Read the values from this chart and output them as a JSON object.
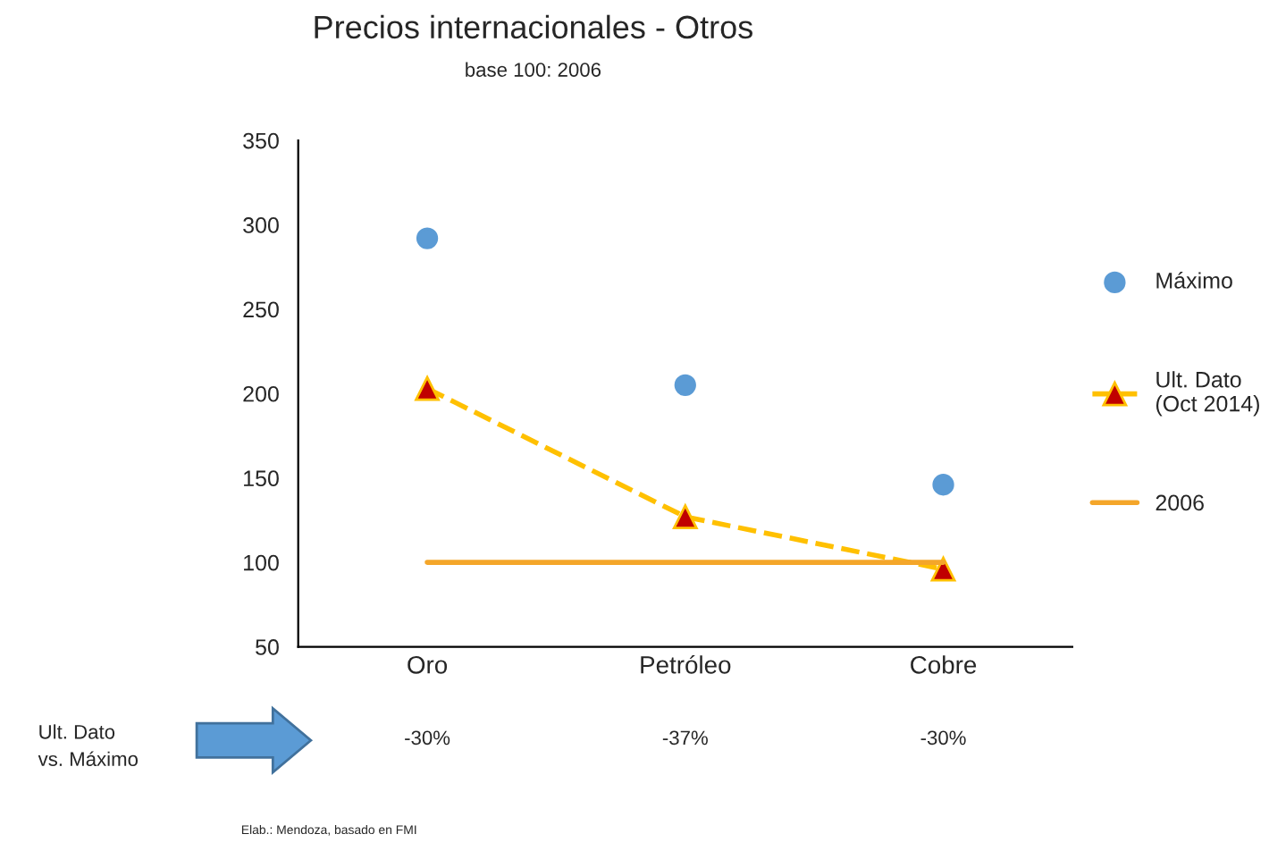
{
  "chart_data": {
    "type": "line",
    "title": "Precios internacionales - Otros",
    "subtitle": "base 100: 2006",
    "categories": [
      "Oro",
      "Petróleo",
      "Cobre"
    ],
    "series": [
      {
        "name": "Máximo",
        "type": "scatter",
        "color": "#5b9bd5",
        "marker": "circle",
        "values": [
          292,
          205,
          146
        ]
      },
      {
        "name": "Ult. Dato\n(Oct 2014)",
        "type": "line",
        "color": "#ffc000",
        "marker": "triangle",
        "line_style": "dashed",
        "values": [
          203,
          127,
          96
        ]
      },
      {
        "name": "2006",
        "color": "#f4a62a",
        "line_style": "solid",
        "values": [
          100,
          100,
          100
        ]
      }
    ],
    "ylim": [
      50,
      350
    ],
    "yticks": [
      50,
      100,
      150,
      200,
      250,
      300,
      350
    ],
    "grid": false,
    "legend": "right",
    "annotations": [
      "Ult. Dato\nvs. Máximo",
      "-30%",
      "-37%",
      "-30%",
      "Elab.: Mendoza, basado en FMI"
    ]
  }
}
